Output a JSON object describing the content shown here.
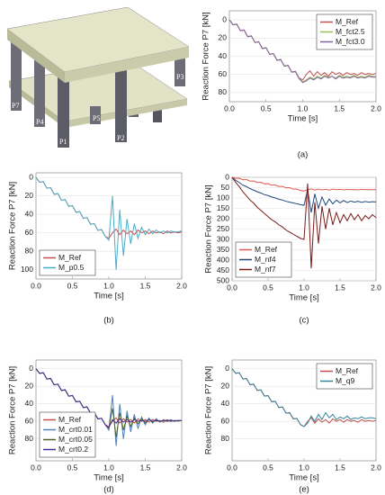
{
  "illustration": {
    "labels": [
      "P7",
      "P4",
      "P5",
      "P1",
      "P2",
      "P3"
    ]
  },
  "chart_data": [
    {
      "type": "line",
      "label": "(a)",
      "x_label": "Time [s]",
      "y_label": "Reaction Force P7 [kN]",
      "y_inverted": true,
      "grid": true,
      "legend": "top-right",
      "xlim": [
        0,
        2
      ],
      "xticks": [
        {
          "value": 0,
          "label": "0.0"
        },
        {
          "value": 0.5,
          "label": "0.5"
        },
        {
          "value": 1,
          "label": "1.0"
        },
        {
          "value": 1.5,
          "label": "1.5"
        },
        {
          "value": 2,
          "label": "2.0"
        }
      ],
      "ylim": [
        -10,
        90
      ],
      "yticks": [
        0,
        20,
        40,
        60,
        80
      ],
      "x": [
        0,
        0.05,
        0.1,
        0.15,
        0.2,
        0.25,
        0.3,
        0.35,
        0.4,
        0.45,
        0.5,
        0.55,
        0.6,
        0.65,
        0.7,
        0.75,
        0.8,
        0.85,
        0.9,
        0.95,
        1,
        1.05,
        1.1,
        1.15,
        1.2,
        1.25,
        1.3,
        1.35,
        1.4,
        1.45,
        1.5,
        1.55,
        1.6,
        1.65,
        1.7,
        1.75,
        1.8,
        1.85,
        1.9,
        1.95,
        2
      ],
      "series": [
        {
          "name": "M_Ref",
          "color": "#c0504d",
          "values": [
            0,
            5.3,
            4.5,
            11.8,
            11,
            18.3,
            17.5,
            24.8,
            24,
            31.3,
            30.5,
            37.8,
            37,
            44.3,
            43.5,
            50.8,
            50,
            57.3,
            56.5,
            63.8,
            66,
            60,
            56,
            62,
            57,
            61,
            58,
            62,
            57,
            60,
            58,
            61,
            58,
            60,
            59,
            61,
            58,
            60,
            59,
            60,
            59
          ]
        },
        {
          "name": "M_fct2.5",
          "color": "#9bbb59",
          "values": [
            0,
            5.5,
            4.8,
            12,
            11.3,
            18.6,
            17.8,
            25,
            24.3,
            31.6,
            30.8,
            38,
            37.3,
            44.6,
            43.8,
            51,
            50.3,
            57.6,
            57,
            64.5,
            68,
            66,
            63,
            65,
            62,
            64,
            61,
            63,
            62,
            64,
            61,
            63,
            62,
            63,
            61,
            63,
            62,
            63,
            61,
            62,
            62
          ]
        },
        {
          "name": "M_fct3.0",
          "color": "#8064a2",
          "values": [
            0,
            5.4,
            4.7,
            11.9,
            11.2,
            18.5,
            17.7,
            24.9,
            24.2,
            31.5,
            30.7,
            37.9,
            37.2,
            44.5,
            43.7,
            50.9,
            50.2,
            57.5,
            56.9,
            64.3,
            69,
            67,
            64,
            66,
            63,
            65,
            62,
            64,
            62,
            65,
            62,
            64,
            63,
            64,
            62,
            64,
            63,
            64,
            62,
            63,
            63
          ]
        }
      ]
    },
    {
      "type": "line",
      "label": "(b)",
      "x_label": "Time [s]",
      "y_label": "Reaction Force P7 [kN]",
      "y_inverted": true,
      "grid": true,
      "legend": "bottom-left",
      "xlim": [
        0,
        2
      ],
      "xticks": [
        {
          "value": 0,
          "label": "0.0"
        },
        {
          "value": 0.5,
          "label": "0.5"
        },
        {
          "value": 1,
          "label": "1.0"
        },
        {
          "value": 1.5,
          "label": "1.5"
        },
        {
          "value": 2,
          "label": "2.0"
        }
      ],
      "ylim": [
        -5,
        110
      ],
      "yticks": [
        0,
        20,
        40,
        60,
        80,
        100
      ],
      "x": [
        0,
        0.05,
        0.1,
        0.15,
        0.2,
        0.25,
        0.3,
        0.35,
        0.4,
        0.45,
        0.5,
        0.55,
        0.6,
        0.65,
        0.7,
        0.75,
        0.8,
        0.85,
        0.9,
        0.95,
        1,
        1.05,
        1.1,
        1.15,
        1.2,
        1.25,
        1.3,
        1.35,
        1.4,
        1.45,
        1.5,
        1.55,
        1.6,
        1.65,
        1.7,
        1.75,
        1.8,
        1.85,
        1.9,
        1.95,
        2
      ],
      "series": [
        {
          "name": "M_Ref",
          "color": "#c0504d",
          "values": [
            0,
            5.3,
            4.5,
            11.8,
            11,
            18.3,
            17.5,
            24.8,
            24,
            31.3,
            30.5,
            37.8,
            37,
            44.3,
            43.5,
            50.8,
            50,
            57.3,
            56.5,
            63.8,
            66,
            60,
            56,
            62,
            57,
            61,
            58,
            62,
            57,
            60,
            58,
            61,
            58,
            60,
            59,
            61,
            58,
            60,
            59,
            60,
            59
          ]
        },
        {
          "name": "M_p0.5",
          "color": "#4bacc6",
          "values": [
            0,
            5.3,
            4.5,
            11.8,
            11,
            18.3,
            17.5,
            24.8,
            24,
            31.3,
            30.5,
            37.8,
            37,
            44.3,
            43.5,
            50.8,
            50,
            57.3,
            56.5,
            63.8,
            68,
            20,
            100,
            35,
            85,
            45,
            72,
            50,
            66,
            54,
            62,
            56,
            61,
            57,
            60,
            58,
            60,
            58,
            59,
            59,
            58
          ]
        }
      ]
    },
    {
      "type": "line",
      "label": "(c)",
      "x_label": "Time [s]",
      "y_label": "Reaction Force P7 [kN]",
      "y_inverted": true,
      "grid": true,
      "legend": "bottom-left",
      "xlim": [
        0,
        2
      ],
      "xticks": [
        {
          "value": 0,
          "label": "0.0"
        },
        {
          "value": 0.5,
          "label": "0.5"
        },
        {
          "value": 1,
          "label": "1.0"
        },
        {
          "value": 1.5,
          "label": "1.5"
        },
        {
          "value": 2,
          "label": "2.0"
        }
      ],
      "ylim": [
        0,
        500
      ],
      "yticks": [
        0,
        50,
        100,
        150,
        200,
        250,
        300,
        350,
        400,
        450,
        500
      ],
      "x": [
        0,
        0.05,
        0.1,
        0.15,
        0.2,
        0.25,
        0.3,
        0.35,
        0.4,
        0.45,
        0.5,
        0.55,
        0.6,
        0.65,
        0.7,
        0.75,
        0.8,
        0.85,
        0.9,
        0.95,
        1,
        1.05,
        1.1,
        1.15,
        1.2,
        1.25,
        1.3,
        1.35,
        1.4,
        1.45,
        1.5,
        1.55,
        1.6,
        1.65,
        1.7,
        1.75,
        1.8,
        1.85,
        1.9,
        1.95,
        2
      ],
      "series": [
        {
          "name": "M_Ref",
          "color": "#e05a50",
          "values": [
            0,
            5.3,
            4.5,
            11.8,
            11,
            18.3,
            17.5,
            24.8,
            24,
            31.3,
            30.5,
            37.8,
            37,
            44.3,
            43.5,
            50.8,
            50,
            57.3,
            56.5,
            63.8,
            66,
            60,
            56,
            62,
            57,
            61,
            58,
            62,
            57,
            60,
            58,
            61,
            58,
            60,
            59,
            61,
            58,
            60,
            59,
            60,
            59
          ]
        },
        {
          "name": "M_nf4",
          "color": "#1f497d",
          "values": [
            0,
            15,
            25,
            38,
            45,
            55,
            62,
            70,
            76,
            84,
            88,
            95,
            100,
            106,
            110,
            116,
            120,
            124,
            128,
            132,
            135,
            60,
            170,
            80,
            150,
            95,
            135,
            105,
            128,
            110,
            124,
            112,
            122,
            115,
            120,
            116,
            121,
            117,
            120,
            118,
            119
          ]
        },
        {
          "name": "M_nf7",
          "color": "#7b1a1a",
          "values": [
            0,
            25,
            45,
            70,
            90,
            110,
            125,
            145,
            160,
            175,
            190,
            205,
            215,
            230,
            240,
            255,
            265,
            275,
            285,
            295,
            300,
            30,
            440,
            120,
            320,
            140,
            250,
            150,
            230,
            170,
            220,
            180,
            210,
            175,
            205,
            180,
            210,
            185,
            200,
            180,
            195
          ]
        }
      ]
    },
    {
      "type": "line",
      "label": "(d)",
      "x_label": "Time [s]",
      "y_label": "Reaction Force P7 [kN]",
      "y_inverted": true,
      "grid": true,
      "legend": "bottom-left",
      "xlim": [
        0,
        2
      ],
      "xticks": [
        {
          "value": 0,
          "label": "0.0"
        },
        {
          "value": 0.5,
          "label": "0.5"
        },
        {
          "value": 1,
          "label": "1.0"
        },
        {
          "value": 1.5,
          "label": "1.5"
        },
        {
          "value": 2,
          "label": "2.0"
        }
      ],
      "ylim": [
        -10,
        105
      ],
      "yticks": [
        0,
        20,
        40,
        60,
        80
      ],
      "x": [
        0,
        0.05,
        0.1,
        0.15,
        0.2,
        0.25,
        0.3,
        0.35,
        0.4,
        0.45,
        0.5,
        0.55,
        0.6,
        0.65,
        0.7,
        0.75,
        0.8,
        0.85,
        0.9,
        0.95,
        1,
        1.05,
        1.1,
        1.15,
        1.2,
        1.25,
        1.3,
        1.35,
        1.4,
        1.45,
        1.5,
        1.55,
        1.6,
        1.65,
        1.7,
        1.75,
        1.8,
        1.85,
        1.9,
        1.95,
        2
      ],
      "series": [
        {
          "name": "M_Ref",
          "color": "#c0504d",
          "values": [
            0,
            5.3,
            4.5,
            11.8,
            11,
            18.3,
            17.5,
            24.8,
            24,
            31.3,
            30.5,
            37.8,
            37,
            44.3,
            43.5,
            50.8,
            50,
            57.3,
            56.5,
            63.8,
            66,
            60,
            56,
            62,
            57,
            61,
            58,
            62,
            57,
            60,
            58,
            61,
            58,
            60,
            59,
            61,
            58,
            60,
            59,
            60,
            59
          ]
        },
        {
          "name": "M_crt0.01",
          "color": "#4f81bd",
          "values": [
            0,
            5.3,
            4.5,
            11.8,
            11,
            18.3,
            17.5,
            24.8,
            24,
            31.3,
            30.5,
            37.8,
            37,
            44.3,
            43.5,
            50.8,
            50,
            57.3,
            56.5,
            63.8,
            70,
            30,
            88,
            40,
            80,
            48,
            72,
            52,
            68,
            55,
            64,
            56,
            62,
            57,
            61,
            58,
            60,
            58,
            60,
            59,
            59
          ]
        },
        {
          "name": "M_crt0.05",
          "color": "#4f6228",
          "values": [
            0,
            5.3,
            4.5,
            11.8,
            11,
            18.3,
            17.5,
            24.8,
            24,
            31.3,
            30.5,
            37.8,
            37,
            44.3,
            43.5,
            50.8,
            50,
            57.3,
            56.5,
            63.8,
            68,
            45,
            78,
            50,
            70,
            54,
            66,
            56,
            63,
            57,
            62,
            58,
            61,
            58,
            60,
            59,
            60,
            59,
            60,
            59,
            59
          ]
        },
        {
          "name": "M_crt0.2",
          "color": "#403294",
          "values": [
            0,
            5.3,
            4.5,
            11.8,
            11,
            18.3,
            17.5,
            24.8,
            24,
            31.3,
            30.5,
            37.8,
            37,
            44.3,
            43.5,
            50.8,
            50,
            57.3,
            56.5,
            63.8,
            67,
            58,
            62,
            57,
            61,
            58,
            61,
            58,
            60,
            59,
            60,
            58,
            60,
            59,
            60,
            59,
            59,
            60,
            59,
            59,
            59
          ]
        }
      ]
    },
    {
      "type": "line",
      "label": "(e)",
      "x_label": "Time [s]",
      "y_label": "Reaction Force P7 [kN]",
      "y_inverted": true,
      "grid": true,
      "legend": "top-right",
      "xlim": [
        0,
        2
      ],
      "xticks": [
        {
          "value": 0,
          "label": "0.0"
        },
        {
          "value": 0.5,
          "label": "0.5"
        },
        {
          "value": 1,
          "label": "1.0"
        },
        {
          "value": 1.5,
          "label": "1.5"
        },
        {
          "value": 2,
          "label": "2.0"
        }
      ],
      "ylim": [
        -10,
        105
      ],
      "yticks": [
        0,
        20,
        40,
        60,
        80
      ],
      "x": [
        0,
        0.05,
        0.1,
        0.15,
        0.2,
        0.25,
        0.3,
        0.35,
        0.4,
        0.45,
        0.5,
        0.55,
        0.6,
        0.65,
        0.7,
        0.75,
        0.8,
        0.85,
        0.9,
        0.95,
        1,
        1.05,
        1.1,
        1.15,
        1.2,
        1.25,
        1.3,
        1.35,
        1.4,
        1.45,
        1.5,
        1.55,
        1.6,
        1.65,
        1.7,
        1.75,
        1.8,
        1.85,
        1.9,
        1.95,
        2
      ],
      "series": [
        {
          "name": "M_Ref",
          "color": "#c0504d",
          "values": [
            0,
            5.3,
            4.5,
            11.8,
            11,
            18.3,
            17.5,
            24.8,
            24,
            31.3,
            30.5,
            37.8,
            37,
            44.3,
            43.5,
            50.8,
            50,
            57.3,
            56.5,
            63.8,
            66,
            60,
            56,
            62,
            57,
            61,
            58,
            62,
            57,
            60,
            58,
            61,
            58,
            60,
            59,
            61,
            58,
            60,
            59,
            60,
            59
          ]
        },
        {
          "name": "M_q9",
          "color": "#31859c",
          "values": [
            0,
            5,
            4.8,
            11.5,
            11.3,
            18,
            17.8,
            24.5,
            24.3,
            31,
            30.8,
            37.5,
            37.3,
            44,
            43.8,
            50.5,
            50.3,
            57,
            56.8,
            63.5,
            66,
            62,
            54,
            60,
            52,
            58,
            50,
            56,
            52,
            58,
            55,
            57,
            54,
            58,
            56,
            57,
            55,
            57,
            56,
            56,
            57
          ]
        }
      ]
    }
  ]
}
